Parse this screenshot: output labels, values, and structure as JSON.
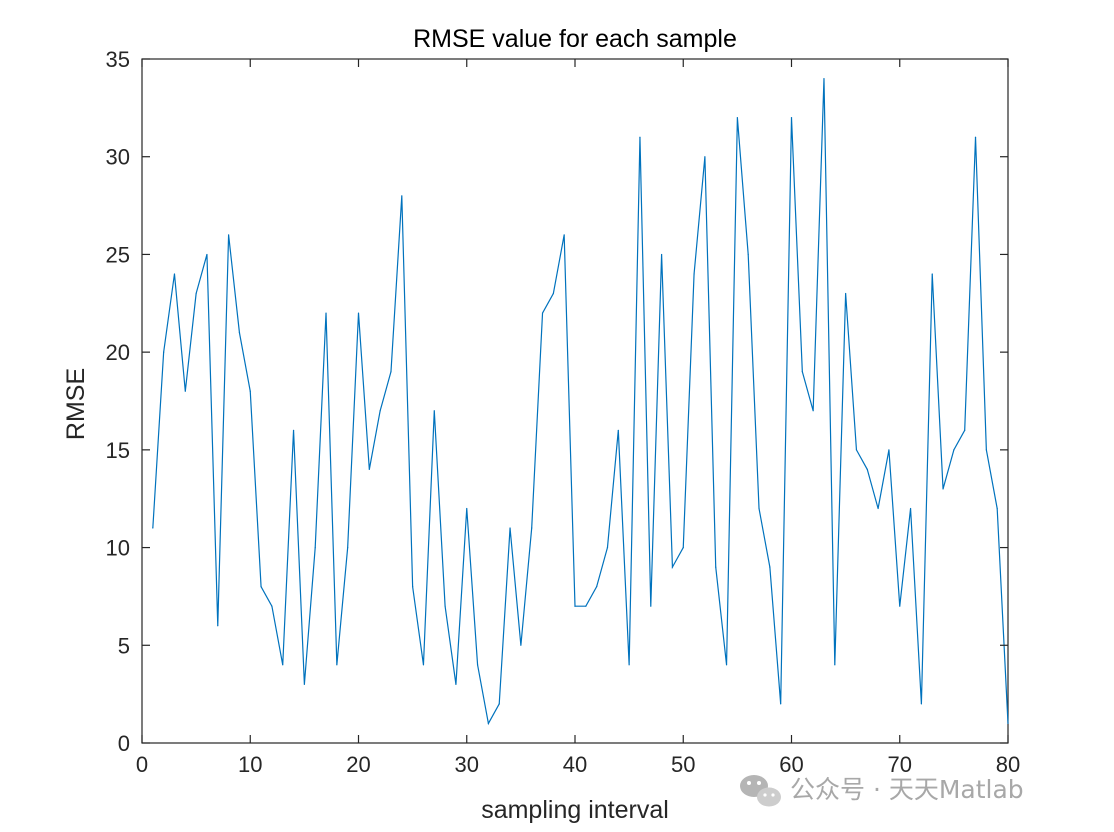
{
  "chart_data": {
    "type": "line",
    "title": "RMSE value for each sample",
    "xlabel": "sampling interval",
    "ylabel": "RMSE",
    "xlim": [
      0,
      80
    ],
    "ylim": [
      0,
      35
    ],
    "xticks": [
      0,
      10,
      20,
      30,
      40,
      50,
      60,
      70,
      80
    ],
    "yticks": [
      0,
      5,
      10,
      15,
      20,
      25,
      30,
      35
    ],
    "grid": false,
    "color": "#0072BD",
    "series": [
      {
        "x": [
          1,
          2,
          3,
          4,
          5,
          6,
          7,
          8,
          9,
          10,
          11,
          12,
          13,
          14,
          15,
          16,
          17,
          18,
          19,
          20,
          21,
          22,
          23,
          24,
          25,
          26,
          27,
          28,
          29,
          30,
          31,
          32,
          33,
          34,
          35,
          36,
          37,
          38,
          39,
          40,
          41,
          42,
          43,
          44,
          45,
          46,
          47,
          48,
          49,
          50,
          51,
          52,
          53,
          54,
          55,
          56,
          57,
          58,
          59,
          60,
          61,
          62,
          63,
          64,
          65,
          66,
          67,
          68,
          69,
          70,
          71,
          72,
          73,
          74,
          75,
          76,
          77,
          78,
          79,
          80
        ],
        "values": [
          11,
          20,
          24,
          18,
          23,
          25,
          6,
          26,
          21,
          18,
          8,
          7,
          4,
          16,
          3,
          10,
          22,
          4,
          10,
          22,
          14,
          17,
          19,
          28,
          8,
          4,
          17,
          7,
          3,
          12,
          4,
          1,
          2,
          11,
          5,
          11,
          22,
          23,
          26,
          7,
          7,
          8,
          10,
          16,
          4,
          31,
          7,
          25,
          9,
          10,
          24,
          30,
          9,
          4,
          32,
          25,
          12,
          9,
          2,
          32,
          19,
          17,
          34,
          4,
          23,
          15,
          14,
          12,
          15,
          7,
          12,
          2,
          24,
          13,
          15,
          16,
          31,
          15,
          12,
          1
        ]
      }
    ]
  },
  "watermark": {
    "text": "公众号 · 天天Matlab",
    "icon": "wechat-icon"
  }
}
